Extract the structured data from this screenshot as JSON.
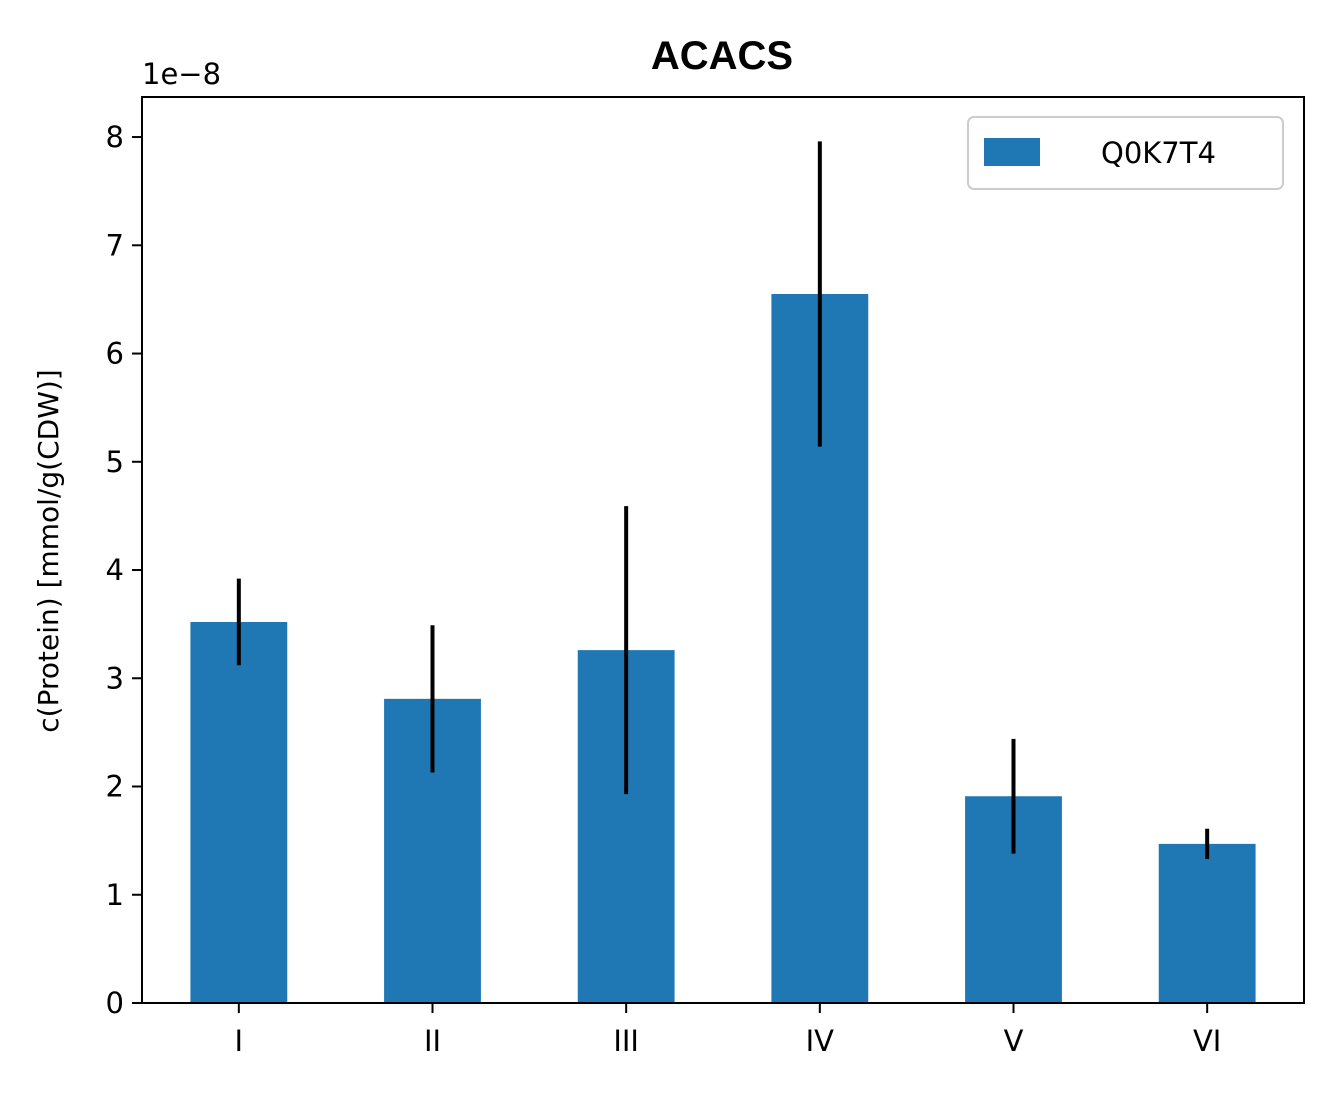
{
  "chart_data": {
    "type": "bar",
    "title": "ACACS",
    "ylabel": "c(Protein) [mmol/g(CDW)]",
    "xlabel": "",
    "offset_label": "1e−8",
    "scale": 1e-08,
    "categories": [
      "I",
      "II",
      "III",
      "IV",
      "V",
      "VI"
    ],
    "series": [
      {
        "name": "Q0K7T4",
        "color": "#1f77b4",
        "values": [
          3.52e-08,
          2.81e-08,
          3.26e-08,
          6.55e-08,
          1.91e-08,
          1.47e-08
        ],
        "errors": [
          4e-09,
          6.8e-09,
          1.33e-08,
          1.41e-08,
          5.3e-09,
          1.4e-09
        ]
      }
    ],
    "yticks": [
      "0",
      "1",
      "2",
      "3",
      "4",
      "5",
      "6",
      "7",
      "8"
    ],
    "ylim": [
      0,
      8.37e-08
    ],
    "grid": false,
    "legend_position": "top-right"
  }
}
